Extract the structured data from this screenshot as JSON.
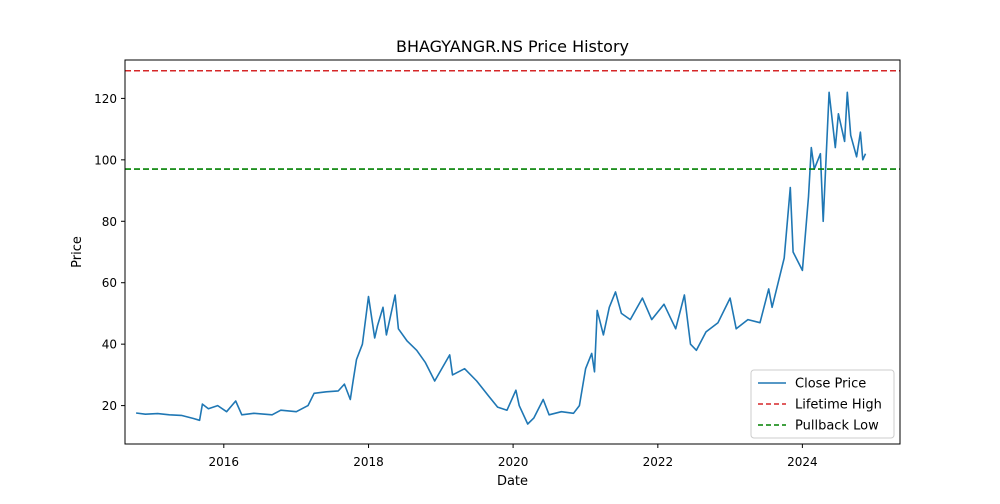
{
  "chart_data": {
    "type": "line",
    "title": "BHAGYANGR.NS Price History",
    "xlabel": "Date",
    "ylabel": "Price",
    "xlim": [
      "2014-08-20",
      "2025-05-08"
    ],
    "ylim": [
      7.5,
      132.5
    ],
    "x_ticks": [
      {
        "date": "2016-01-01",
        "label": "2016"
      },
      {
        "date": "2018-01-01",
        "label": "2018"
      },
      {
        "date": "2020-01-01",
        "label": "2020"
      },
      {
        "date": "2022-01-01",
        "label": "2022"
      },
      {
        "date": "2024-01-01",
        "label": "2024"
      }
    ],
    "y_ticks": [
      {
        "value": 20,
        "label": "20"
      },
      {
        "value": 40,
        "label": "40"
      },
      {
        "value": 60,
        "label": "60"
      },
      {
        "value": 80,
        "label": "80"
      },
      {
        "value": 100,
        "label": "100"
      },
      {
        "value": 120,
        "label": "120"
      }
    ],
    "grid": false,
    "legend_position": "lower-right",
    "series": [
      {
        "name": "Close Price",
        "color": "#1f77b4",
        "style": "solid",
        "points": [
          [
            "2014-10-15",
            17.6
          ],
          [
            "2014-12-01",
            17.2
          ],
          [
            "2015-02-01",
            17.4
          ],
          [
            "2015-04-01",
            17.0
          ],
          [
            "2015-06-01",
            16.8
          ],
          [
            "2015-08-01",
            15.8
          ],
          [
            "2015-09-01",
            15.2
          ],
          [
            "2015-09-15",
            20.5
          ],
          [
            "2015-10-15",
            19.0
          ],
          [
            "2015-12-01",
            20.0
          ],
          [
            "2016-01-15",
            18.0
          ],
          [
            "2016-03-01",
            21.5
          ],
          [
            "2016-04-01",
            17.0
          ],
          [
            "2016-06-01",
            17.5
          ],
          [
            "2016-09-01",
            17.0
          ],
          [
            "2016-10-15",
            18.5
          ],
          [
            "2017-01-01",
            18.0
          ],
          [
            "2017-03-01",
            20.0
          ],
          [
            "2017-04-01",
            24.0
          ],
          [
            "2017-06-01",
            24.5
          ],
          [
            "2017-08-01",
            24.8
          ],
          [
            "2017-09-01",
            27.0
          ],
          [
            "2017-10-01",
            22.0
          ],
          [
            "2017-10-15",
            28.0
          ],
          [
            "2017-11-01",
            35.0
          ],
          [
            "2017-12-01",
            40.0
          ],
          [
            "2018-01-01",
            55.5
          ],
          [
            "2018-02-01",
            42.0
          ],
          [
            "2018-02-15",
            46.0
          ],
          [
            "2018-03-15",
            52.0
          ],
          [
            "2018-04-01",
            43.0
          ],
          [
            "2018-05-15",
            56.0
          ],
          [
            "2018-06-01",
            45.0
          ],
          [
            "2018-07-15",
            41.0
          ],
          [
            "2018-09-01",
            38.0
          ],
          [
            "2018-10-15",
            34.0
          ],
          [
            "2018-12-01",
            28.0
          ],
          [
            "2019-02-15",
            36.5
          ],
          [
            "2019-03-01",
            30.0
          ],
          [
            "2019-05-01",
            32.0
          ],
          [
            "2019-07-01",
            28.0
          ],
          [
            "2019-09-01",
            23.0
          ],
          [
            "2019-10-15",
            19.5
          ],
          [
            "2019-12-01",
            18.5
          ],
          [
            "2020-01-15",
            25.0
          ],
          [
            "2020-02-01",
            20.0
          ],
          [
            "2020-03-15",
            14.0
          ],
          [
            "2020-04-15",
            16.0
          ],
          [
            "2020-06-01",
            22.0
          ],
          [
            "2020-07-01",
            17.0
          ],
          [
            "2020-09-01",
            18.0
          ],
          [
            "2020-11-01",
            17.5
          ],
          [
            "2020-12-01",
            20.0
          ],
          [
            "2021-01-01",
            32.0
          ],
          [
            "2021-02-01",
            37.0
          ],
          [
            "2021-02-15",
            31.0
          ],
          [
            "2021-03-01",
            51.0
          ],
          [
            "2021-04-01",
            43.0
          ],
          [
            "2021-05-01",
            52.0
          ],
          [
            "2021-06-01",
            57.0
          ],
          [
            "2021-07-01",
            50.0
          ],
          [
            "2021-08-15",
            48.0
          ],
          [
            "2021-10-15",
            55.0
          ],
          [
            "2021-12-01",
            48.0
          ],
          [
            "2022-02-01",
            53.0
          ],
          [
            "2022-04-01",
            45.0
          ],
          [
            "2022-05-15",
            56.0
          ],
          [
            "2022-06-15",
            40.0
          ],
          [
            "2022-07-15",
            38.0
          ],
          [
            "2022-09-01",
            44.0
          ],
          [
            "2022-11-01",
            47.0
          ],
          [
            "2023-01-01",
            55.0
          ],
          [
            "2023-02-01",
            45.0
          ],
          [
            "2023-04-01",
            48.0
          ],
          [
            "2023-06-01",
            47.0
          ],
          [
            "2023-07-15",
            58.0
          ],
          [
            "2023-08-01",
            52.0
          ],
          [
            "2023-10-01",
            68.0
          ],
          [
            "2023-11-01",
            91.0
          ],
          [
            "2023-11-15",
            70.0
          ],
          [
            "2024-01-01",
            64.0
          ],
          [
            "2024-02-01",
            88.0
          ],
          [
            "2024-02-15",
            104.0
          ],
          [
            "2024-03-01",
            97.0
          ],
          [
            "2024-04-01",
            102.0
          ],
          [
            "2024-04-15",
            80.0
          ],
          [
            "2024-05-15",
            122.0
          ],
          [
            "2024-06-15",
            104.0
          ],
          [
            "2024-07-01",
            115.0
          ],
          [
            "2024-08-01",
            106.0
          ],
          [
            "2024-08-15",
            122.0
          ],
          [
            "2024-09-01",
            108.0
          ],
          [
            "2024-10-01",
            101.0
          ],
          [
            "2024-10-20",
            109.0
          ],
          [
            "2024-11-01",
            100.0
          ],
          [
            "2024-11-15",
            102.0
          ]
        ]
      },
      {
        "name": "Lifetime High",
        "color": "#d62728",
        "style": "dashed",
        "hline": 129.0
      },
      {
        "name": "Pullback Low",
        "color": "#008000",
        "style": "dashed",
        "hline": 97.0
      }
    ]
  }
}
